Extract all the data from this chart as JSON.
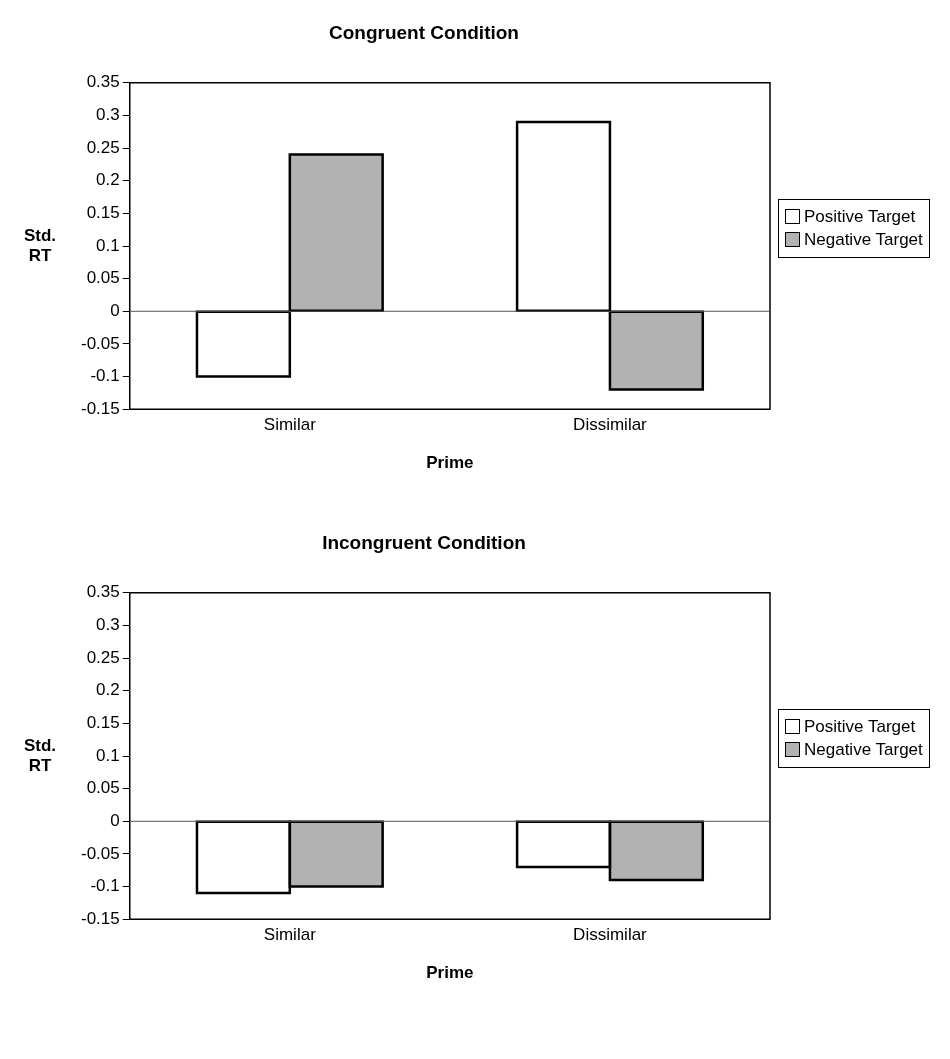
{
  "chart_data": [
    {
      "type": "bar",
      "title": "Congruent Condition",
      "xlabel": "Prime",
      "ylabel": "Std. RT",
      "categories": [
        "Similar",
        "Dissimilar"
      ],
      "series": [
        {
          "name": "Positive Target",
          "color": "#ffffff",
          "values": [
            -0.1,
            0.29
          ]
        },
        {
          "name": "Negative Target",
          "color": "#b2b2b2",
          "values": [
            0.24,
            -0.12
          ]
        }
      ],
      "ylim": [
        -0.15,
        0.35
      ],
      "yticks": [
        -0.15,
        -0.1,
        -0.05,
        0,
        0.05,
        0.1,
        0.15,
        0.2,
        0.25,
        0.3,
        0.35
      ],
      "legend": "right"
    },
    {
      "type": "bar",
      "title": "Incongruent Condition",
      "xlabel": "Prime",
      "ylabel": "Std. RT",
      "categories": [
        "Similar",
        "Dissimilar"
      ],
      "series": [
        {
          "name": "Positive Target",
          "color": "#ffffff",
          "values": [
            -0.11,
            -0.07
          ]
        },
        {
          "name": "Negative Target",
          "color": "#b2b2b2",
          "values": [
            -0.1,
            -0.09
          ]
        }
      ],
      "ylim": [
        -0.15,
        0.35
      ],
      "yticks": [
        -0.15,
        -0.1,
        -0.05,
        0,
        0.05,
        0.1,
        0.15,
        0.2,
        0.25,
        0.3,
        0.35
      ],
      "legend": "right"
    }
  ]
}
